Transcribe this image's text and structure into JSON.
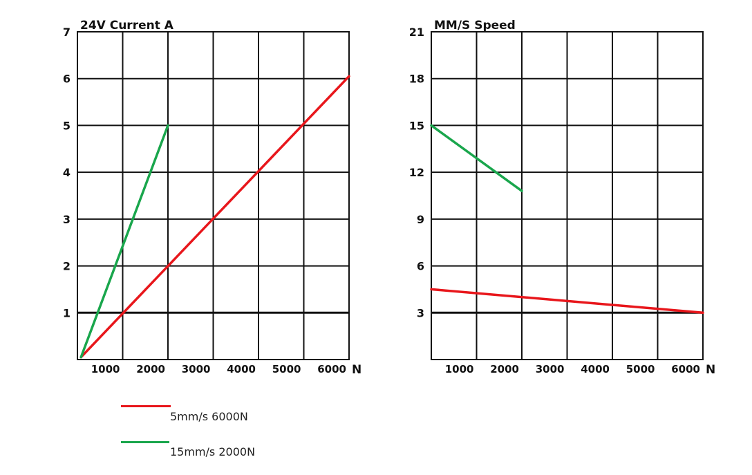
{
  "chart_data": [
    {
      "type": "line",
      "title": "24V Current A",
      "xlabel": "N",
      "ylabel": "",
      "xlim": [
        0,
        6000
      ],
      "ylim": [
        0,
        7
      ],
      "x_ticks": [
        1000,
        2000,
        3000,
        4000,
        5000,
        6000
      ],
      "y_ticks": [
        1,
        2,
        3,
        4,
        5,
        6,
        7
      ],
      "grid": true,
      "series": [
        {
          "name": "5mm/s 6000N",
          "color": "#e8161b",
          "x": [
            80,
            6000
          ],
          "y": [
            0.05,
            6.05
          ]
        },
        {
          "name": "15mm/s 2000N",
          "color": "#19a64c",
          "x": [
            80,
            2000
          ],
          "y": [
            0.05,
            5.0
          ]
        }
      ]
    },
    {
      "type": "line",
      "title": "MM/S Speed",
      "xlabel": "N",
      "ylabel": "",
      "xlim": [
        0,
        6000
      ],
      "ylim": [
        0,
        21
      ],
      "x_ticks": [
        1000,
        2000,
        3000,
        4000,
        5000,
        6000
      ],
      "y_ticks": [
        3,
        6,
        9,
        12,
        15,
        18,
        21
      ],
      "grid": true,
      "series": [
        {
          "name": "5mm/s 6000N",
          "color": "#e8161b",
          "x": [
            0,
            6000
          ],
          "y": [
            4.5,
            3.0
          ]
        },
        {
          "name": "15mm/s 2000N",
          "color": "#19a64c",
          "x": [
            0,
            2000
          ],
          "y": [
            15.0,
            10.8
          ]
        }
      ]
    }
  ],
  "legend": {
    "items": [
      {
        "label": "5mm/s 6000N",
        "color": "#e8161b"
      },
      {
        "label": "15mm/s 2000N",
        "color": "#19a64c"
      }
    ]
  }
}
